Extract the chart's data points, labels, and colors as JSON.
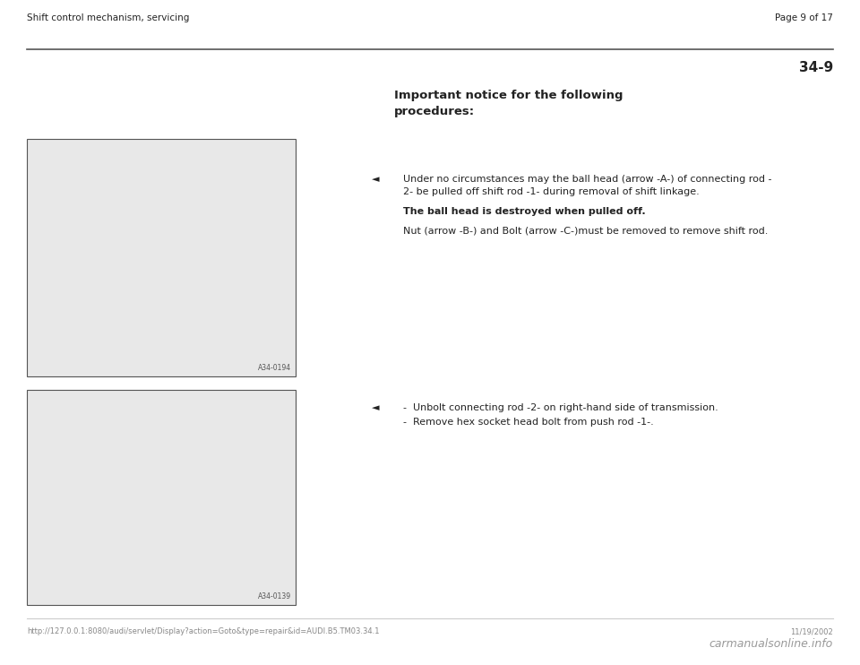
{
  "background_color": "#ffffff",
  "page_width": 9.6,
  "page_height": 7.42,
  "header_left": "Shift control mechanism, servicing",
  "header_right": "Page 9 of 17",
  "section_number": "34-9",
  "title_bold": "Important notice for the following\nprocedures:",
  "bullet_symbol": "◄",
  "bullet_text_1a": "Under no circumstances may the ball head (arrow -A-) of connecting rod -",
  "bullet_text_1b": "2- be pulled off shift rod -1- during removal of shift linkage.",
  "bullet_bold_text": "The ball head is destroyed when pulled off.",
  "bullet_text_1c": "Nut (arrow -B-) and Bolt (arrow -C-)must be removed to remove shift rod.",
  "bullet_text_2a": "-  Unbolt connecting rod -2- on right-hand side of transmission.",
  "bullet_text_2b": "-  Remove hex socket head bolt from push rod -1-.",
  "image1_label": "A34-0194",
  "image2_label": "A34-0139",
  "footer_left": "http://127.0.0.1:8080/audi/servlet/Display?action=Goto&type=repair&id=AUDI.B5.TM03.34.1",
  "footer_right_date": "11/19/2002",
  "footer_right_brand": "carmanualsonline.info",
  "header_font_size": 7.5,
  "section_font_size": 11,
  "title_font_size": 9.5,
  "body_font_size": 8.0,
  "footer_font_size": 6.0,
  "gray_color": "#888888",
  "light_gray": "#cccccc",
  "dark_gray": "#555555",
  "mid_gray": "#999999",
  "text_color": "#222222",
  "img1_fill": "#e8e8e8",
  "img2_fill": "#e8e8e8"
}
